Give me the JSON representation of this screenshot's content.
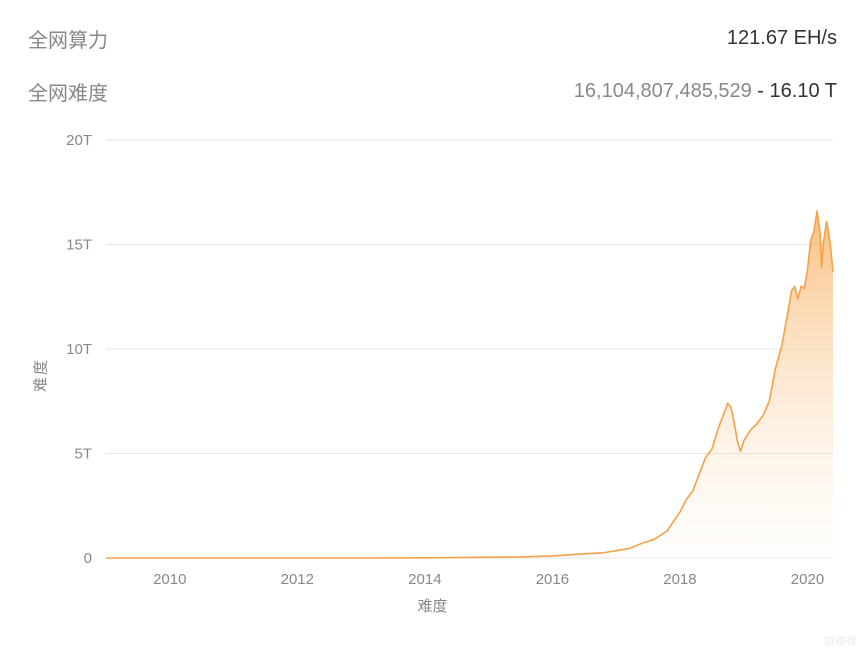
{
  "header": {
    "hashrate_label": "全网算力",
    "hashrate_value": "121.67 EH/s",
    "difficulty_label": "全网难度",
    "difficulty_num": "16,104,807,485,529",
    "difficulty_sep": " - ",
    "difficulty_t": "16.10 T"
  },
  "chart": {
    "type": "area",
    "ylabel": "难度",
    "xlabel": "难度",
    "ylim": [
      0,
      20
    ],
    "ytick_step": 5,
    "yticks": [
      0,
      5,
      10,
      15,
      20
    ],
    "ytick_labels": [
      "0",
      "5T",
      "10T",
      "15T",
      "20T"
    ],
    "xlim": [
      2009,
      2020.4
    ],
    "xticks": [
      2010,
      2012,
      2014,
      2016,
      2018,
      2020
    ],
    "xtick_labels": [
      "2010",
      "2012",
      "2014",
      "2016",
      "2018",
      "2020"
    ],
    "line_color": "#f5a14a",
    "fill_top_color": "#f8b56a",
    "fill_bottom_color": "#fdf3e8",
    "grid_color": "#e5e5e5",
    "axis_text_color": "#888888",
    "background_color": "#ffffff",
    "tick_fontsize": 15,
    "line_width": 1.6,
    "series": [
      {
        "x": 2009.0,
        "y": 0.0
      },
      {
        "x": 2010.0,
        "y": 0.0
      },
      {
        "x": 2011.0,
        "y": 0.0
      },
      {
        "x": 2012.0,
        "y": 0.0
      },
      {
        "x": 2013.0,
        "y": 0.0
      },
      {
        "x": 2014.0,
        "y": 0.01
      },
      {
        "x": 2014.5,
        "y": 0.02
      },
      {
        "x": 2015.0,
        "y": 0.04
      },
      {
        "x": 2015.5,
        "y": 0.05
      },
      {
        "x": 2016.0,
        "y": 0.1
      },
      {
        "x": 2016.5,
        "y": 0.2
      },
      {
        "x": 2016.8,
        "y": 0.25
      },
      {
        "x": 2017.0,
        "y": 0.35
      },
      {
        "x": 2017.2,
        "y": 0.45
      },
      {
        "x": 2017.4,
        "y": 0.7
      },
      {
        "x": 2017.6,
        "y": 0.9
      },
      {
        "x": 2017.8,
        "y": 1.3
      },
      {
        "x": 2018.0,
        "y": 2.2
      },
      {
        "x": 2018.1,
        "y": 2.8
      },
      {
        "x": 2018.2,
        "y": 3.2
      },
      {
        "x": 2018.3,
        "y": 4.0
      },
      {
        "x": 2018.4,
        "y": 4.8
      },
      {
        "x": 2018.5,
        "y": 5.2
      },
      {
        "x": 2018.6,
        "y": 6.2
      },
      {
        "x": 2018.7,
        "y": 7.0
      },
      {
        "x": 2018.75,
        "y": 7.4
      },
      {
        "x": 2018.8,
        "y": 7.2
      },
      {
        "x": 2018.85,
        "y": 6.5
      },
      {
        "x": 2018.9,
        "y": 5.6
      },
      {
        "x": 2018.95,
        "y": 5.1
      },
      {
        "x": 2019.0,
        "y": 5.6
      },
      {
        "x": 2019.1,
        "y": 6.1
      },
      {
        "x": 2019.2,
        "y": 6.4
      },
      {
        "x": 2019.3,
        "y": 6.8
      },
      {
        "x": 2019.4,
        "y": 7.5
      },
      {
        "x": 2019.5,
        "y": 9.1
      },
      {
        "x": 2019.6,
        "y": 10.2
      },
      {
        "x": 2019.7,
        "y": 11.9
      },
      {
        "x": 2019.75,
        "y": 12.8
      },
      {
        "x": 2019.8,
        "y": 13.0
      },
      {
        "x": 2019.85,
        "y": 12.4
      },
      {
        "x": 2019.9,
        "y": 13.0
      },
      {
        "x": 2019.95,
        "y": 12.9
      },
      {
        "x": 2020.0,
        "y": 13.8
      },
      {
        "x": 2020.05,
        "y": 15.2
      },
      {
        "x": 2020.1,
        "y": 15.6
      },
      {
        "x": 2020.15,
        "y": 16.6
      },
      {
        "x": 2020.2,
        "y": 15.5
      },
      {
        "x": 2020.22,
        "y": 13.9
      },
      {
        "x": 2020.25,
        "y": 15.1
      },
      {
        "x": 2020.3,
        "y": 16.1
      },
      {
        "x": 2020.35,
        "y": 15.2
      },
      {
        "x": 2020.4,
        "y": 13.7
      }
    ]
  },
  "watermark": "链得得"
}
